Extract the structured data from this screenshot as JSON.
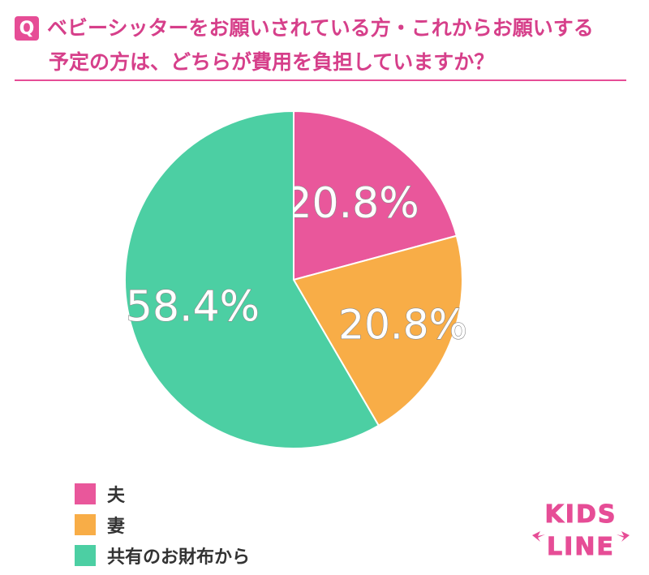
{
  "header": {
    "badge": "Q",
    "question_line1": "ベビーシッターをお願いされている方・これからお願いする",
    "question_line2": "予定の方は、どちらが費用を負担していますか？"
  },
  "colors": {
    "accent": "#e64d96",
    "husband": "#e9579b",
    "wife": "#f8ad47",
    "shared": "#4ccfa3"
  },
  "chart_data": {
    "type": "pie",
    "title": "",
    "slices": [
      {
        "label": "夫",
        "value": 20.8,
        "display": "20.8%",
        "color": "#e9579b"
      },
      {
        "label": "妻",
        "value": 20.8,
        "display": "20.8%",
        "color": "#f8ad47"
      },
      {
        "label": "共有のお財布から",
        "value": 58.4,
        "display": "58.4%",
        "color": "#4ccfa3"
      }
    ],
    "start": "12 o'clock",
    "direction": "clockwise",
    "legend_position": "bottom-left"
  },
  "legend": {
    "items": [
      {
        "label": "夫",
        "color": "#e9579b"
      },
      {
        "label": "妻",
        "color": "#f8ad47"
      },
      {
        "label": "共有のお財布から",
        "color": "#4ccfa3"
      }
    ]
  },
  "logo": {
    "line1": "KIDS",
    "line2": "LINE",
    "icon": "kidsline-logo"
  }
}
